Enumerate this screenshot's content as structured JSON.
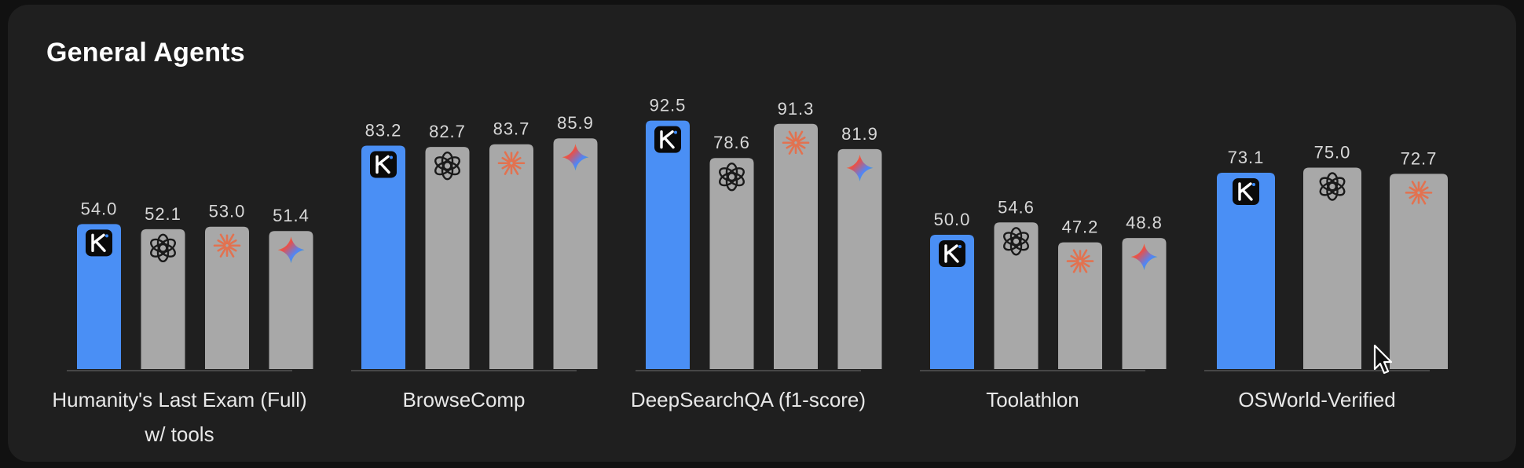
{
  "title": "General Agents",
  "colors": {
    "highlight": "#4a8ff5",
    "bar": "#a8a8a8",
    "background": "#1f1f1f",
    "axis": "#555555"
  },
  "chart_data": {
    "type": "bar",
    "ylim": [
      0,
      100
    ],
    "groups": [
      {
        "category": "Humanity's Last Exam (Full) w/ tools",
        "category_lines": [
          "Humanity's Last Exam (Full)",
          "w/ tools"
        ],
        "bars": [
          {
            "icon": "kimi-k-icon",
            "value": 54.0,
            "label": "54.0",
            "highlight": true
          },
          {
            "icon": "openai-icon",
            "value": 52.1,
            "label": "52.1",
            "highlight": false
          },
          {
            "icon": "anthropic-icon",
            "value": 53.0,
            "label": "53.0",
            "highlight": false
          },
          {
            "icon": "gemini-icon",
            "value": 51.4,
            "label": "51.4",
            "highlight": false
          }
        ]
      },
      {
        "category": "BrowseComp",
        "category_lines": [
          "BrowseComp"
        ],
        "bars": [
          {
            "icon": "kimi-k-icon",
            "value": 83.2,
            "label": "83.2",
            "highlight": true
          },
          {
            "icon": "openai-icon",
            "value": 82.7,
            "label": "82.7",
            "highlight": false
          },
          {
            "icon": "anthropic-icon",
            "value": 83.7,
            "label": "83.7",
            "highlight": false
          },
          {
            "icon": "gemini-icon",
            "value": 85.9,
            "label": "85.9",
            "highlight": false
          }
        ]
      },
      {
        "category": "DeepSearchQA (f1-score)",
        "category_lines": [
          "DeepSearchQA (f1-score)"
        ],
        "bars": [
          {
            "icon": "kimi-k-icon",
            "value": 92.5,
            "label": "92.5",
            "highlight": true
          },
          {
            "icon": "openai-icon",
            "value": 78.6,
            "label": "78.6",
            "highlight": false
          },
          {
            "icon": "anthropic-icon",
            "value": 91.3,
            "label": "91.3",
            "highlight": false
          },
          {
            "icon": "gemini-icon",
            "value": 81.9,
            "label": "81.9",
            "highlight": false
          }
        ]
      },
      {
        "category": "Toolathlon",
        "category_lines": [
          "Toolathlon"
        ],
        "bars": [
          {
            "icon": "kimi-k-icon",
            "value": 50.0,
            "label": "50.0",
            "highlight": true
          },
          {
            "icon": "openai-icon",
            "value": 54.6,
            "label": "54.6",
            "highlight": false
          },
          {
            "icon": "anthropic-icon",
            "value": 47.2,
            "label": "47.2",
            "highlight": false
          },
          {
            "icon": "gemini-icon",
            "value": 48.8,
            "label": "48.8",
            "highlight": false
          }
        ]
      },
      {
        "category": "OSWorld-Verified",
        "category_lines": [
          "OSWorld-Verified"
        ],
        "bars": [
          {
            "icon": "kimi-k-icon",
            "value": 73.1,
            "label": "73.1",
            "highlight": true
          },
          {
            "icon": "openai-icon",
            "value": 75.0,
            "label": "75.0",
            "highlight": false
          },
          {
            "icon": "anthropic-icon",
            "value": 72.7,
            "label": "72.7",
            "highlight": false
          }
        ]
      }
    ]
  }
}
